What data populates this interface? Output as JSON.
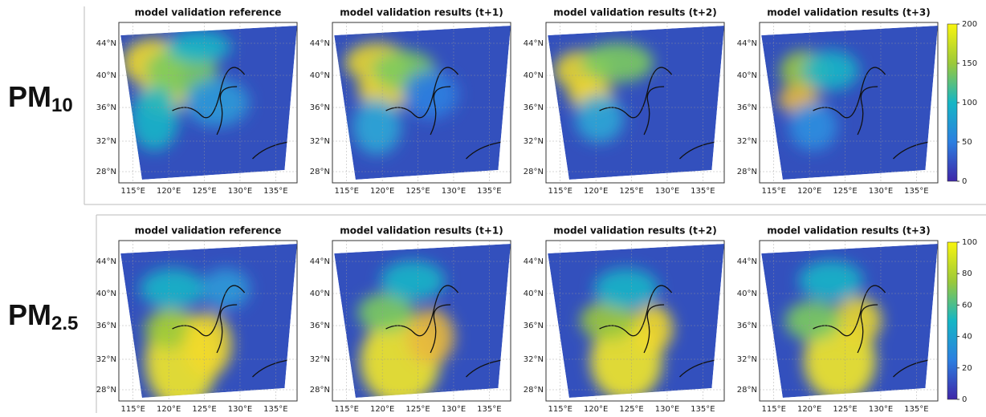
{
  "rows": [
    {
      "label": {
        "main": "PM",
        "sub": "10"
      },
      "colorbar": {
        "clim": [
          0,
          200
        ],
        "ticks": [
          0,
          50,
          100,
          150,
          200
        ]
      }
    },
    {
      "label": {
        "main": "PM",
        "sub": "2.5"
      },
      "colorbar": {
        "clim": [
          0,
          100
        ],
        "ticks": [
          0,
          20,
          40,
          60,
          80,
          100
        ]
      }
    }
  ],
  "panel_titles": [
    "model validation reference",
    "model validation results (t+1)",
    "model validation results (t+2)",
    "model validation results (t+3)"
  ],
  "lat_labels": [
    "44°N",
    "40°N",
    "36°N",
    "32°N",
    "28°N"
  ],
  "lon_labels": [
    "115°E",
    "120°E",
    "125°E",
    "130°E",
    "135°E"
  ]
}
